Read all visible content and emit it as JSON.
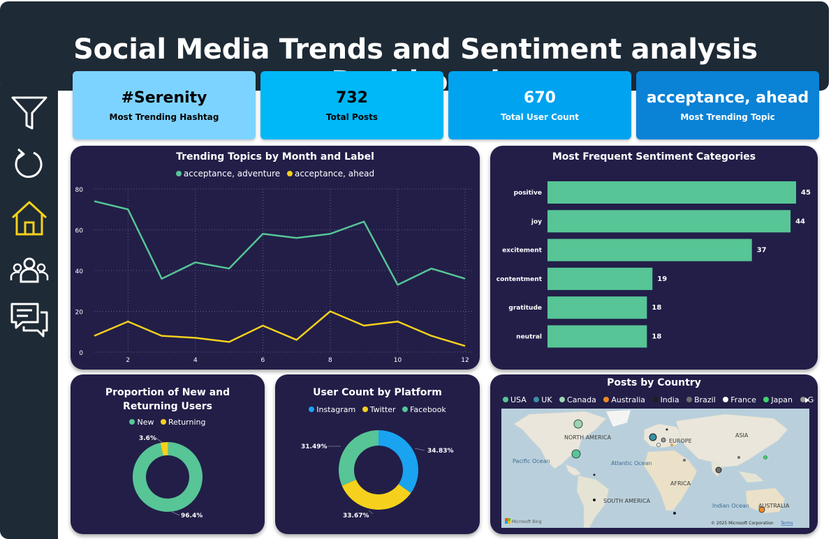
{
  "header": {
    "title": "Social Media Trends and Sentiment analysis Dashboard"
  },
  "nav": [
    {
      "name": "filter-icon",
      "color": "#ffffff"
    },
    {
      "name": "refresh-icon",
      "color": "#ffffff"
    },
    {
      "name": "home-icon",
      "color": "#f5d11d"
    },
    {
      "name": "users-icon",
      "color": "#ffffff"
    },
    {
      "name": "chat-icon",
      "color": "#ffffff"
    }
  ],
  "kpis": [
    {
      "value": "#Serenity",
      "label": "Most Trending Hashtag",
      "bg": "#7dd3ff",
      "fg": "#000000"
    },
    {
      "value": "732",
      "label": "Total Posts",
      "bg": "#00b7f7",
      "fg": "#000000"
    },
    {
      "value": "670",
      "label": "Total User Count",
      "bg": "#00a3f0",
      "fg": "#ffffff"
    },
    {
      "value": "acceptance, ahead",
      "label": "Most Trending Topic",
      "bg": "#0a82d6",
      "fg": "#ffffff"
    }
  ],
  "trend": {
    "title": "Trending Topics by Month and Label",
    "legend": [
      {
        "name": "acceptance, adventure",
        "color": "#57c596"
      },
      {
        "name": "acceptance, ahead",
        "color": "#f5d11d"
      }
    ]
  },
  "sentiment": {
    "title": "Most Frequent Sentiment Categories"
  },
  "users": {
    "title": "Proportion of New and Returning Users",
    "legend": [
      {
        "name": "New",
        "color": "#57c596"
      },
      {
        "name": "Returning",
        "color": "#f5d11d"
      }
    ],
    "labels": [
      "3.6%",
      "96.4%"
    ]
  },
  "platform": {
    "title": "User Count by Platform",
    "legend": [
      {
        "name": "Instagram",
        "color": "#1aa3f0"
      },
      {
        "name": "Twitter",
        "color": "#f5d11d"
      },
      {
        "name": "Facebook",
        "color": "#57c596"
      }
    ],
    "labels": [
      "34.83%",
      "33.67%",
      "31.49%"
    ]
  },
  "country": {
    "title": "Posts by Country",
    "legend": [
      {
        "name": "USA",
        "color": "#57c596"
      },
      {
        "name": "UK",
        "color": "#3b8ea5"
      },
      {
        "name": "Canada",
        "color": "#9fd3b4"
      },
      {
        "name": "Australia",
        "color": "#f08a24"
      },
      {
        "name": "India",
        "color": "#1e1e1e"
      },
      {
        "name": "Brazil",
        "color": "#6f6f6f"
      },
      {
        "name": "France",
        "color": "#ffffff"
      },
      {
        "name": "Japan",
        "color": "#3fd46b"
      },
      {
        "name": "Germany",
        "color": "#9a9a9a"
      }
    ],
    "map_labels": [
      "NORTH AMERICA",
      "EUROPE",
      "ASIA",
      "Pacific Ocean",
      "Atlantic Ocean",
      "AFRICA",
      "SOUTH AMERICA",
      "Indian Ocean",
      "AUSTRALIA"
    ],
    "attribution": "© 2025 Microsoft Corporation",
    "terms": "Terms",
    "bing": "Microsoft Bing"
  },
  "chart_data": [
    {
      "type": "line",
      "title": "Trending Topics by Month and Label",
      "x": [
        1,
        2,
        3,
        4,
        5,
        6,
        7,
        8,
        9,
        10,
        11,
        12
      ],
      "xticks": [
        2,
        4,
        6,
        8,
        10,
        12
      ],
      "yticks": [
        0,
        20,
        40,
        60,
        80
      ],
      "ylim": [
        0,
        80
      ],
      "grid": true,
      "legend": "top",
      "series": [
        {
          "name": "acceptance, adventure",
          "color": "#57c596",
          "values": [
            74,
            70,
            36,
            44,
            41,
            58,
            56,
            58,
            64,
            33,
            41,
            36
          ]
        },
        {
          "name": "acceptance, ahead",
          "color": "#f5d11d",
          "values": [
            8,
            15,
            8,
            7,
            5,
            13,
            6,
            20,
            13,
            15,
            8,
            3
          ]
        }
      ]
    },
    {
      "type": "bar",
      "orientation": "horizontal",
      "title": "Most Frequent Sentiment Categories",
      "categories": [
        "positive",
        "joy",
        "excitement",
        "contentment",
        "gratitude",
        "neutral"
      ],
      "values": [
        45,
        44,
        37,
        19,
        18,
        18
      ],
      "color": "#57c596"
    },
    {
      "type": "pie",
      "donut": true,
      "title": "Proportion of New and Returning Users",
      "labels": [
        "New",
        "Returning"
      ],
      "values": [
        96.4,
        3.6
      ],
      "colors": [
        "#57c596",
        "#f5d11d"
      ]
    },
    {
      "type": "pie",
      "donut": true,
      "title": "User Count by Platform",
      "labels": [
        "Instagram",
        "Twitter",
        "Facebook"
      ],
      "values": [
        34.83,
        33.67,
        31.49
      ],
      "colors": [
        "#1aa3f0",
        "#f5d11d",
        "#57c596"
      ]
    }
  ]
}
